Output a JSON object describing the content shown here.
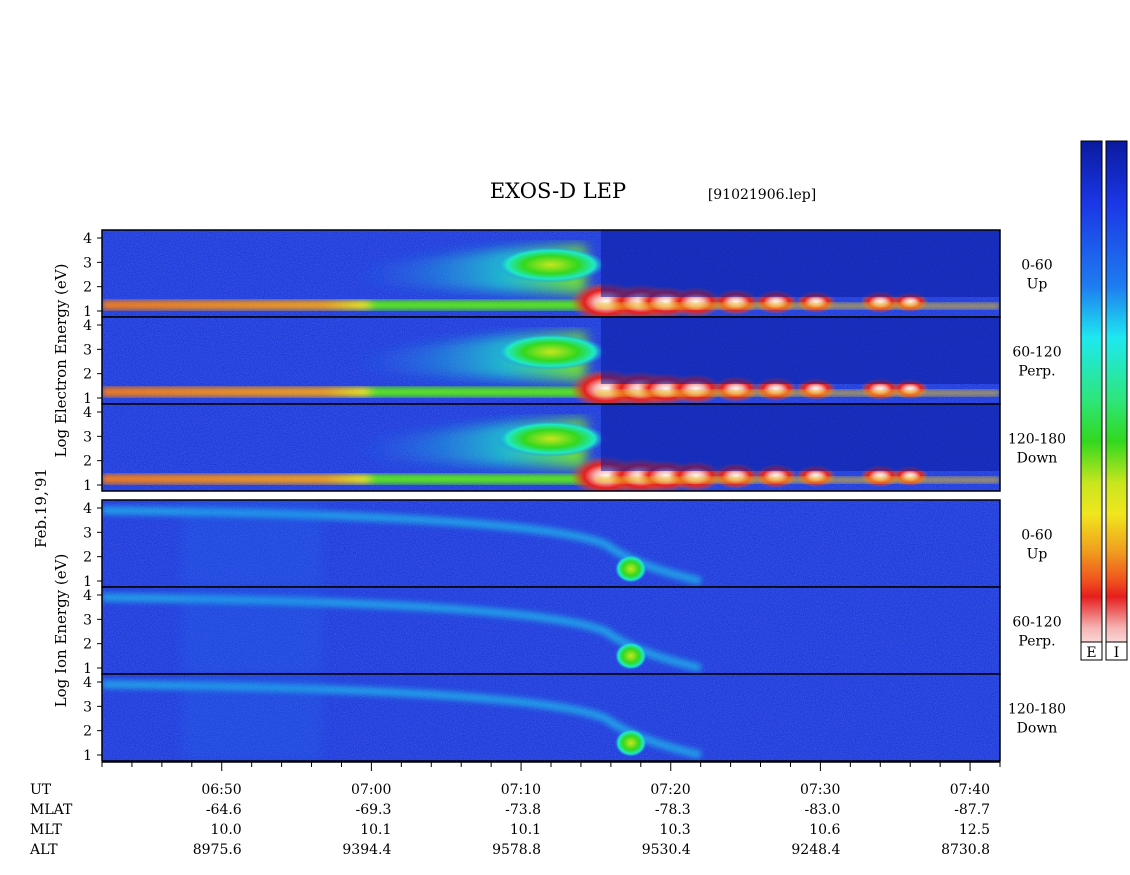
{
  "title": "EXOS-D LEP",
  "file": "[91021906.lep]",
  "date_label": "Feb.19,'91",
  "colorbar_labels": [
    "E",
    "I"
  ],
  "colors": {
    "background_fill": "#1b2fd6",
    "scale": [
      "#0a1a9e",
      "#1b36e6",
      "#1e7cf0",
      "#1ee8f0",
      "#2ee67a",
      "#32d81e",
      "#c8e61e",
      "#f0e61e",
      "#f0a01e",
      "#f0501e",
      "#e61e1e",
      "#f5b4b4",
      "#ffffff"
    ]
  },
  "chart_data": {
    "type": "heatmap",
    "title": "EXOS-D LEP",
    "subtitle": "[91021906.lep]",
    "x_axis": {
      "range": [
        "06:42",
        "07:42"
      ],
      "tick_labels": [
        "06:50",
        "07:00",
        "07:10",
        "07:20",
        "07:30",
        "07:40"
      ],
      "minor_tick_minutes": 2
    },
    "y_axis": {
      "scale": "log",
      "tick_labels": [
        "1",
        "2",
        "3",
        "4"
      ],
      "range": [
        1,
        4
      ]
    },
    "groups": [
      {
        "name": "electron",
        "ylabel_lines": [
          "Log",
          "Electron",
          "Energy",
          "(eV)"
        ],
        "panels": [
          {
            "channel": [
              "0-60",
              "Up"
            ]
          },
          {
            "channel": [
              "60-120",
              "Perp."
            ]
          },
          {
            "channel": [
              "120-180",
              "Down"
            ]
          }
        ]
      },
      {
        "name": "ion",
        "ylabel_lines": [
          "Log",
          "Ion",
          "Energy",
          "(eV)"
        ],
        "panels": [
          {
            "channel": [
              "0-60",
              "Up"
            ]
          },
          {
            "channel": [
              "60-120",
              "Perp."
            ]
          },
          {
            "channel": [
              "120-180",
              "Down"
            ]
          }
        ]
      }
    ],
    "ephemeris": {
      "labels": [
        "UT",
        "MLAT",
        "MLT",
        "ALT"
      ],
      "columns": [
        {
          "UT": "06:50",
          "MLAT": "-64.6",
          "MLT": "10.0",
          "ALT": "8975.6"
        },
        {
          "UT": "07:00",
          "MLAT": "-69.3",
          "MLT": "10.1",
          "ALT": "9394.4"
        },
        {
          "UT": "07:10",
          "MLAT": "-73.8",
          "MLT": "10.1",
          "ALT": "9578.8"
        },
        {
          "UT": "07:20",
          "MLAT": "-78.3",
          "MLT": "10.3",
          "ALT": "9530.4"
        },
        {
          "UT": "07:30",
          "MLAT": "-83.0",
          "MLT": "10.6",
          "ALT": "9248.4"
        },
        {
          "UT": "07:40",
          "MLAT": "-87.7",
          "MLT": "12.5",
          "ALT": "8730.8"
        }
      ]
    }
  }
}
